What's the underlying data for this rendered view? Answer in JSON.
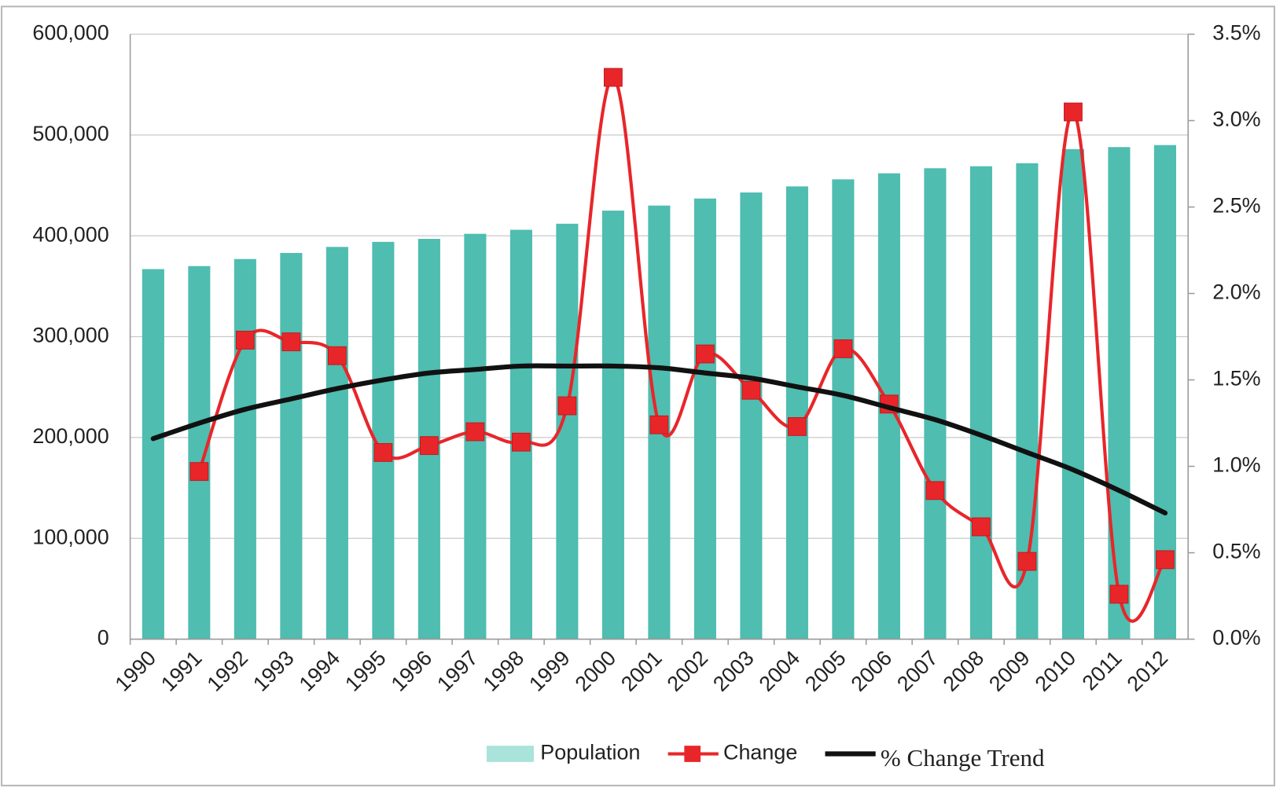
{
  "chart_data": {
    "type": "bar-line",
    "categories": [
      "1990",
      "1991",
      "1992",
      "1993",
      "1994",
      "1995",
      "1996",
      "1997",
      "1998",
      "1999",
      "2000",
      "2001",
      "2002",
      "2003",
      "2004",
      "2005",
      "2006",
      "2007",
      "2008",
      "2009",
      "2010",
      "2011",
      "2012"
    ],
    "series": [
      {
        "name": "Population",
        "type": "bar",
        "color": "#4fbdb0",
        "values": [
          367000,
          370000,
          377000,
          383000,
          389000,
          394000,
          397000,
          402000,
          406000,
          412000,
          425000,
          430000,
          437000,
          443000,
          449000,
          456000,
          462000,
          467000,
          469000,
          472000,
          486000,
          488000,
          490000
        ]
      },
      {
        "name": "Change",
        "type": "line",
        "axis": "y2",
        "color": "#e8262a",
        "marker": "square",
        "values": [
          null,
          0.97,
          1.73,
          1.72,
          1.64,
          1.08,
          1.12,
          1.2,
          1.14,
          1.35,
          3.25,
          1.24,
          1.65,
          1.44,
          1.23,
          1.68,
          1.36,
          0.86,
          0.65,
          0.45,
          3.05,
          0.26,
          0.46
        ]
      },
      {
        "name": "% Change Trend",
        "type": "line",
        "axis": "y2",
        "color": "#111111",
        "values": [
          1.16,
          1.25,
          1.33,
          1.39,
          1.45,
          1.5,
          1.54,
          1.56,
          1.58,
          1.58,
          1.58,
          1.57,
          1.54,
          1.51,
          1.46,
          1.41,
          1.34,
          1.27,
          1.18,
          1.08,
          0.98,
          0.86,
          0.73
        ]
      }
    ],
    "ylim": [
      0,
      600000
    ],
    "yticks": [
      0,
      {
        "value": 100000,
        "label": "100,000"
      },
      {
        "value": 200000,
        "label": "200,000"
      },
      {
        "value": 300000,
        "label": "300,000"
      },
      {
        "value": 400000,
        "label": "400,000"
      },
      {
        "value": 500000,
        "label": "500,000"
      },
      {
        "value": 600000,
        "label": "600,000"
      }
    ],
    "y2lim": [
      0,
      3.5
    ],
    "y2ticks": [
      {
        "value": 0,
        "label": "0.0%"
      },
      {
        "value": 0.5,
        "label": "0.5%"
      },
      {
        "value": 1,
        "label": "1.0%"
      },
      {
        "value": 1.5,
        "label": "1.5%"
      },
      {
        "value": 2,
        "label": "2.0%"
      },
      {
        "value": 2.5,
        "label": "2.5%"
      },
      {
        "value": 3,
        "label": "3.0%"
      },
      {
        "value": 3.5,
        "label": "3.5%"
      }
    ],
    "grid": true,
    "legend": "bottom"
  }
}
